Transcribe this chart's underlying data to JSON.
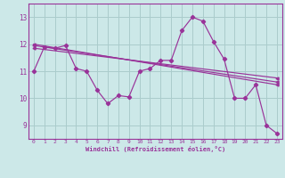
{
  "xlabel": "Windchill (Refroidissement éolien,°C)",
  "bg_color": "#cce8e8",
  "grid_color": "#aacccc",
  "line_color": "#993399",
  "spine_color": "#993399",
  "xlim": [
    -0.5,
    23.5
  ],
  "ylim": [
    8.5,
    13.5
  ],
  "yticks": [
    9,
    10,
    11,
    12,
    13
  ],
  "xticks": [
    0,
    1,
    2,
    3,
    4,
    5,
    6,
    7,
    8,
    9,
    10,
    11,
    12,
    13,
    14,
    15,
    16,
    17,
    18,
    19,
    20,
    21,
    22,
    23
  ],
  "series1_x": [
    0,
    1,
    2,
    3,
    4,
    5,
    6,
    7,
    8,
    9,
    10,
    11,
    12,
    13,
    14,
    15,
    16,
    17,
    18,
    19,
    20,
    21,
    22,
    23
  ],
  "series1_y": [
    11.0,
    11.9,
    11.85,
    11.95,
    11.1,
    11.0,
    10.3,
    9.8,
    10.1,
    10.05,
    11.0,
    11.1,
    11.4,
    11.4,
    12.5,
    13.0,
    12.85,
    12.1,
    11.45,
    10.0,
    10.0,
    10.5,
    9.0,
    8.7
  ],
  "trend1_x": [
    0,
    23
  ],
  "trend1_y": [
    12.0,
    10.5
  ],
  "trend2_x": [
    0,
    23
  ],
  "trend2_y": [
    11.95,
    10.6
  ],
  "trend3_x": [
    0,
    23
  ],
  "trend3_y": [
    11.85,
    10.75
  ]
}
